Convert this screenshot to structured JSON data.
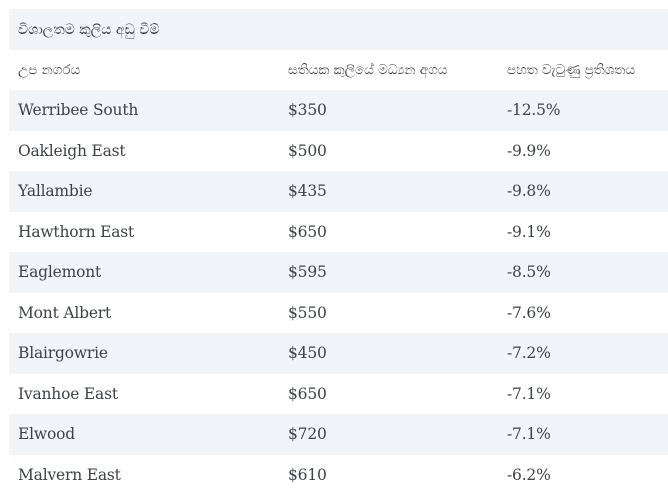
{
  "table": {
    "caption": "විශාලතම කුලිය අඩු වීම්",
    "columns": [
      "උප නගරය",
      "සතියක කුලියේ මධ්‍යන අගය",
      "පහත වැටුණු ප්‍රතිශතය"
    ],
    "rows": [
      {
        "suburb": "Werribee South",
        "median_weekly_rent": "$350",
        "percent_drop": "-12.5%"
      },
      {
        "suburb": "Oakleigh East",
        "median_weekly_rent": "$500",
        "percent_drop": "-9.9%"
      },
      {
        "suburb": "Yallambie",
        "median_weekly_rent": "$435",
        "percent_drop": "-9.8%"
      },
      {
        "suburb": "Hawthorn East",
        "median_weekly_rent": "$650",
        "percent_drop": "-9.1%"
      },
      {
        "suburb": "Eaglemont",
        "median_weekly_rent": "$595",
        "percent_drop": "-8.5%"
      },
      {
        "suburb": "Mont Albert",
        "median_weekly_rent": "$550",
        "percent_drop": "-7.6%"
      },
      {
        "suburb": "Blairgowrie",
        "median_weekly_rent": "$450",
        "percent_drop": "-7.2%"
      },
      {
        "suburb": "Ivanhoe East",
        "median_weekly_rent": "$650",
        "percent_drop": "-7.1%"
      },
      {
        "suburb": "Elwood",
        "median_weekly_rent": "$720",
        "percent_drop": "-7.1%"
      },
      {
        "suburb": "Malvern East",
        "median_weekly_rent": "$610",
        "percent_drop": "-6.2%"
      }
    ]
  },
  "colors": {
    "stripe": "#f1f4f8",
    "text": "#3d4247",
    "header_text": "#2f3439"
  }
}
